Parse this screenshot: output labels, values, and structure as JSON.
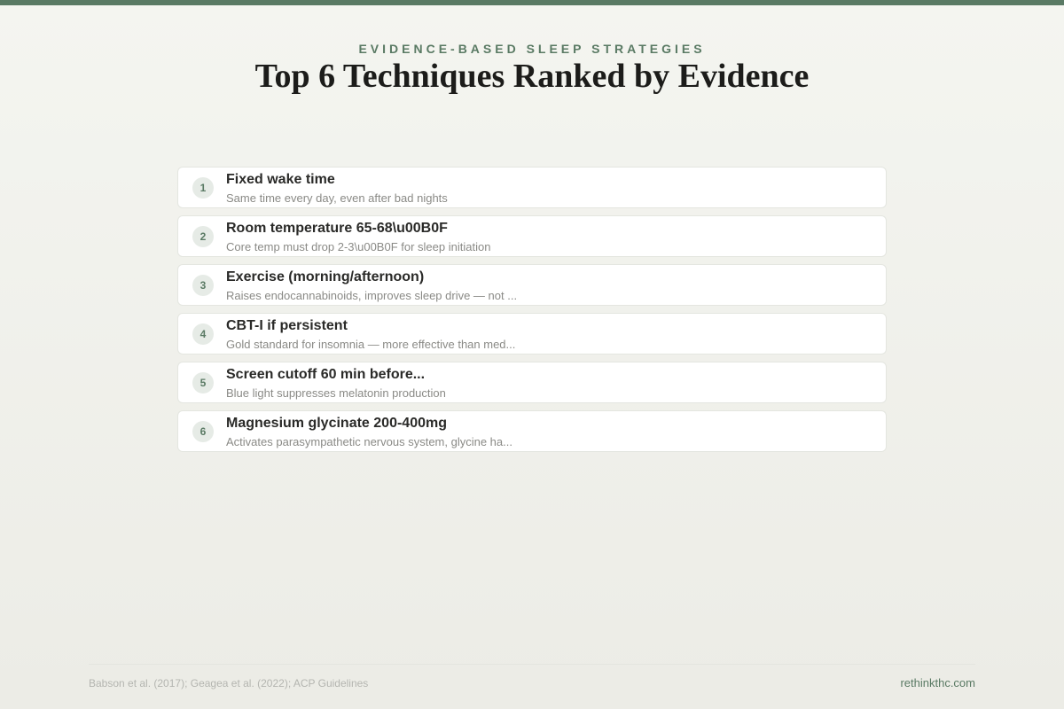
{
  "header": {
    "eyebrow": "EVIDENCE-BASED SLEEP STRATEGIES",
    "title": "Top 6 Techniques Ranked by Evidence"
  },
  "items": [
    {
      "rank": "1",
      "title": "Fixed wake time",
      "description": "Same time every day, even after bad nights"
    },
    {
      "rank": "2",
      "title": "Room temperature 65-68\\u00B0F",
      "description": "Core temp must drop 2-3\\u00B0F for sleep initiation"
    },
    {
      "rank": "3",
      "title": "Exercise (morning/afternoon)",
      "description": "Raises endocannabinoids, improves sleep drive — not ..."
    },
    {
      "rank": "4",
      "title": "CBT-I if persistent",
      "description": "Gold standard for insomnia — more effective than med..."
    },
    {
      "rank": "5",
      "title": "Screen cutoff 60 min before...",
      "description": "Blue light suppresses melatonin production"
    },
    {
      "rank": "6",
      "title": "Magnesium glycinate 200-400mg",
      "description": "Activates parasympathetic nervous system, glycine ha..."
    }
  ],
  "footer": {
    "sources": "Babson et al. (2017); Geagea et al. (2022); ACP Guidelines",
    "site": "rethinkthc.com"
  },
  "colors": {
    "accent": "#5a7a64",
    "background": "#f4f5f0"
  }
}
